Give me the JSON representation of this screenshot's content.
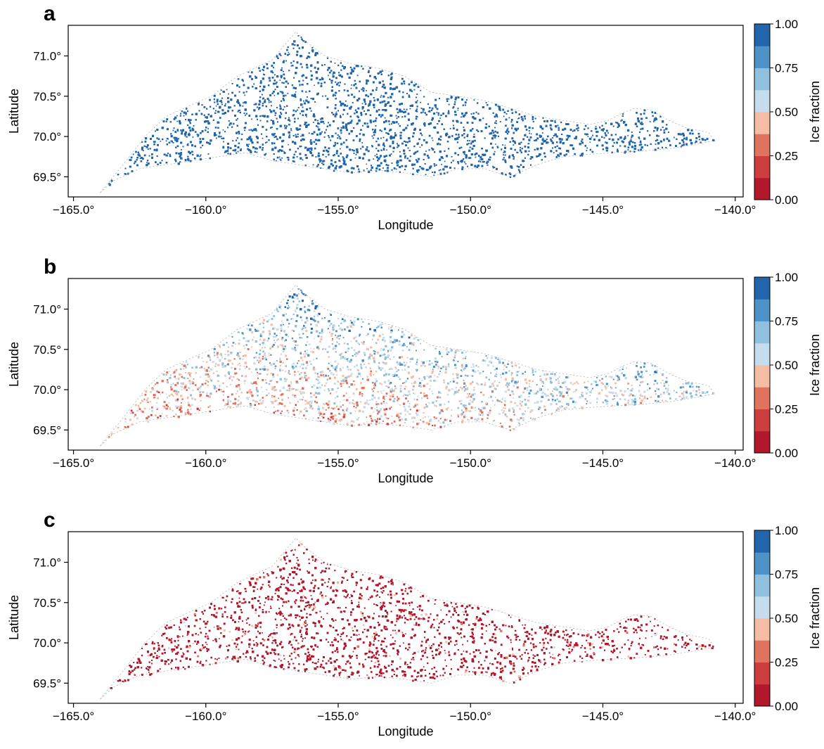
{
  "figure": {
    "panels": [
      {
        "letter": "a"
      },
      {
        "letter": "b"
      },
      {
        "letter": "c"
      }
    ]
  },
  "colorbar": {
    "label": "Ice fraction",
    "ticks": [
      "0.00",
      "0.25",
      "0.50",
      "0.75",
      "1.00"
    ],
    "colors": [
      "#b2182b",
      "#cc3d3d",
      "#e0735e",
      "#f5bea4",
      "#c5dcec",
      "#8fc1df",
      "#4d93c8",
      "#2166ac"
    ]
  },
  "chart_data": [
    {
      "type": "scatter",
      "title": "",
      "xlabel": "Longitude",
      "ylabel": "Latitude",
      "xlim": [
        -165.2,
        -139.7
      ],
      "ylim": [
        69.25,
        71.38
      ],
      "xticks": [
        -165.0,
        -160.0,
        -155.0,
        -150.0,
        -145.0,
        -140.0
      ],
      "xtick_labels": [
        "−165.0°",
        "−160.0°",
        "−155.0°",
        "−150.0°",
        "−145.0°",
        "−140.0°"
      ],
      "yticks": [
        69.5,
        70.0,
        70.5,
        71.0
      ],
      "ytick_labels": [
        "69.5°",
        "70.0°",
        "70.5°",
        "71.0°"
      ],
      "region_outline": {
        "lon": [
          -164.0,
          -163.0,
          -162.3,
          -161.5,
          -160.5,
          -159.8,
          -158.8,
          -157.5,
          -156.6,
          -156.3,
          -155.5,
          -154.5,
          -153.5,
          -152.5,
          -151.5,
          -150.5,
          -149.5,
          -148.5,
          -147.5,
          -146.5,
          -145.5,
          -144.8,
          -144.2,
          -143.8,
          -143.2,
          -142.5,
          -141.8,
          -141.0,
          -140.8,
          -141.5,
          -142.5,
          -143.5,
          -144.5,
          -145.5,
          -146.5,
          -147.5,
          -148.5,
          -149.5,
          -150.5,
          -151.5,
          -152.5,
          -153.5,
          -154.5,
          -155.5,
          -156.5,
          -157.5,
          -158.5,
          -159.5,
          -160.5,
          -161.5,
          -162.5,
          -163.5,
          -164.0
        ],
        "lat": [
          69.3,
          69.7,
          70.0,
          70.25,
          70.4,
          70.5,
          70.75,
          70.95,
          71.3,
          71.2,
          71.0,
          70.9,
          70.85,
          70.75,
          70.55,
          70.5,
          70.45,
          70.35,
          70.25,
          70.2,
          70.15,
          70.2,
          70.3,
          70.35,
          70.33,
          70.2,
          70.1,
          70.05,
          69.95,
          69.9,
          69.85,
          69.82,
          69.8,
          69.78,
          69.75,
          69.65,
          69.5,
          69.6,
          69.6,
          69.5,
          69.55,
          69.58,
          69.55,
          69.6,
          69.65,
          69.7,
          69.8,
          69.75,
          69.7,
          69.65,
          69.6,
          69.45,
          69.3
        ]
      },
      "colorscale_note": "Ice fraction 0.00-1.00 (red to blue)",
      "series": [
        {
          "mean_ice_fraction": 0.95,
          "dominant": "dark blue"
        }
      ]
    },
    {
      "type": "scatter",
      "title": "",
      "xlabel": "Longitude",
      "ylabel": "Latitude",
      "xlim": [
        -165.2,
        -139.7
      ],
      "ylim": [
        69.25,
        71.38
      ],
      "xticks": [
        -165.0,
        -160.0,
        -155.0,
        -150.0,
        -145.0,
        -140.0
      ],
      "xtick_labels": [
        "−165.0°",
        "−160.0°",
        "−155.0°",
        "−150.0°",
        "−145.0°",
        "−140.0°"
      ],
      "yticks": [
        69.5,
        70.0,
        70.5,
        71.0
      ],
      "ytick_labels": [
        "69.5°",
        "70.0°",
        "70.5°",
        "71.0°"
      ],
      "series": [
        {
          "mean_ice_fraction": 0.55,
          "dominant": "light blue / light red mix"
        }
      ]
    },
    {
      "type": "scatter",
      "title": "",
      "xlabel": "Longitude",
      "ylabel": "Latitude",
      "xlim": [
        -165.2,
        -139.7
      ],
      "ylim": [
        69.25,
        71.38
      ],
      "xticks": [
        -165.0,
        -160.0,
        -155.0,
        -150.0,
        -145.0,
        -140.0
      ],
      "xtick_labels": [
        "−165.0°",
        "−160.0°",
        "−155.0°",
        "−150.0°",
        "−145.0°",
        "−140.0°"
      ],
      "yticks": [
        69.5,
        70.0,
        70.5,
        71.0
      ],
      "ytick_labels": [
        "69.5°",
        "70.0°",
        "70.5°",
        "71.0°"
      ],
      "series": [
        {
          "mean_ice_fraction": 0.05,
          "dominant": "dark red"
        }
      ]
    }
  ]
}
